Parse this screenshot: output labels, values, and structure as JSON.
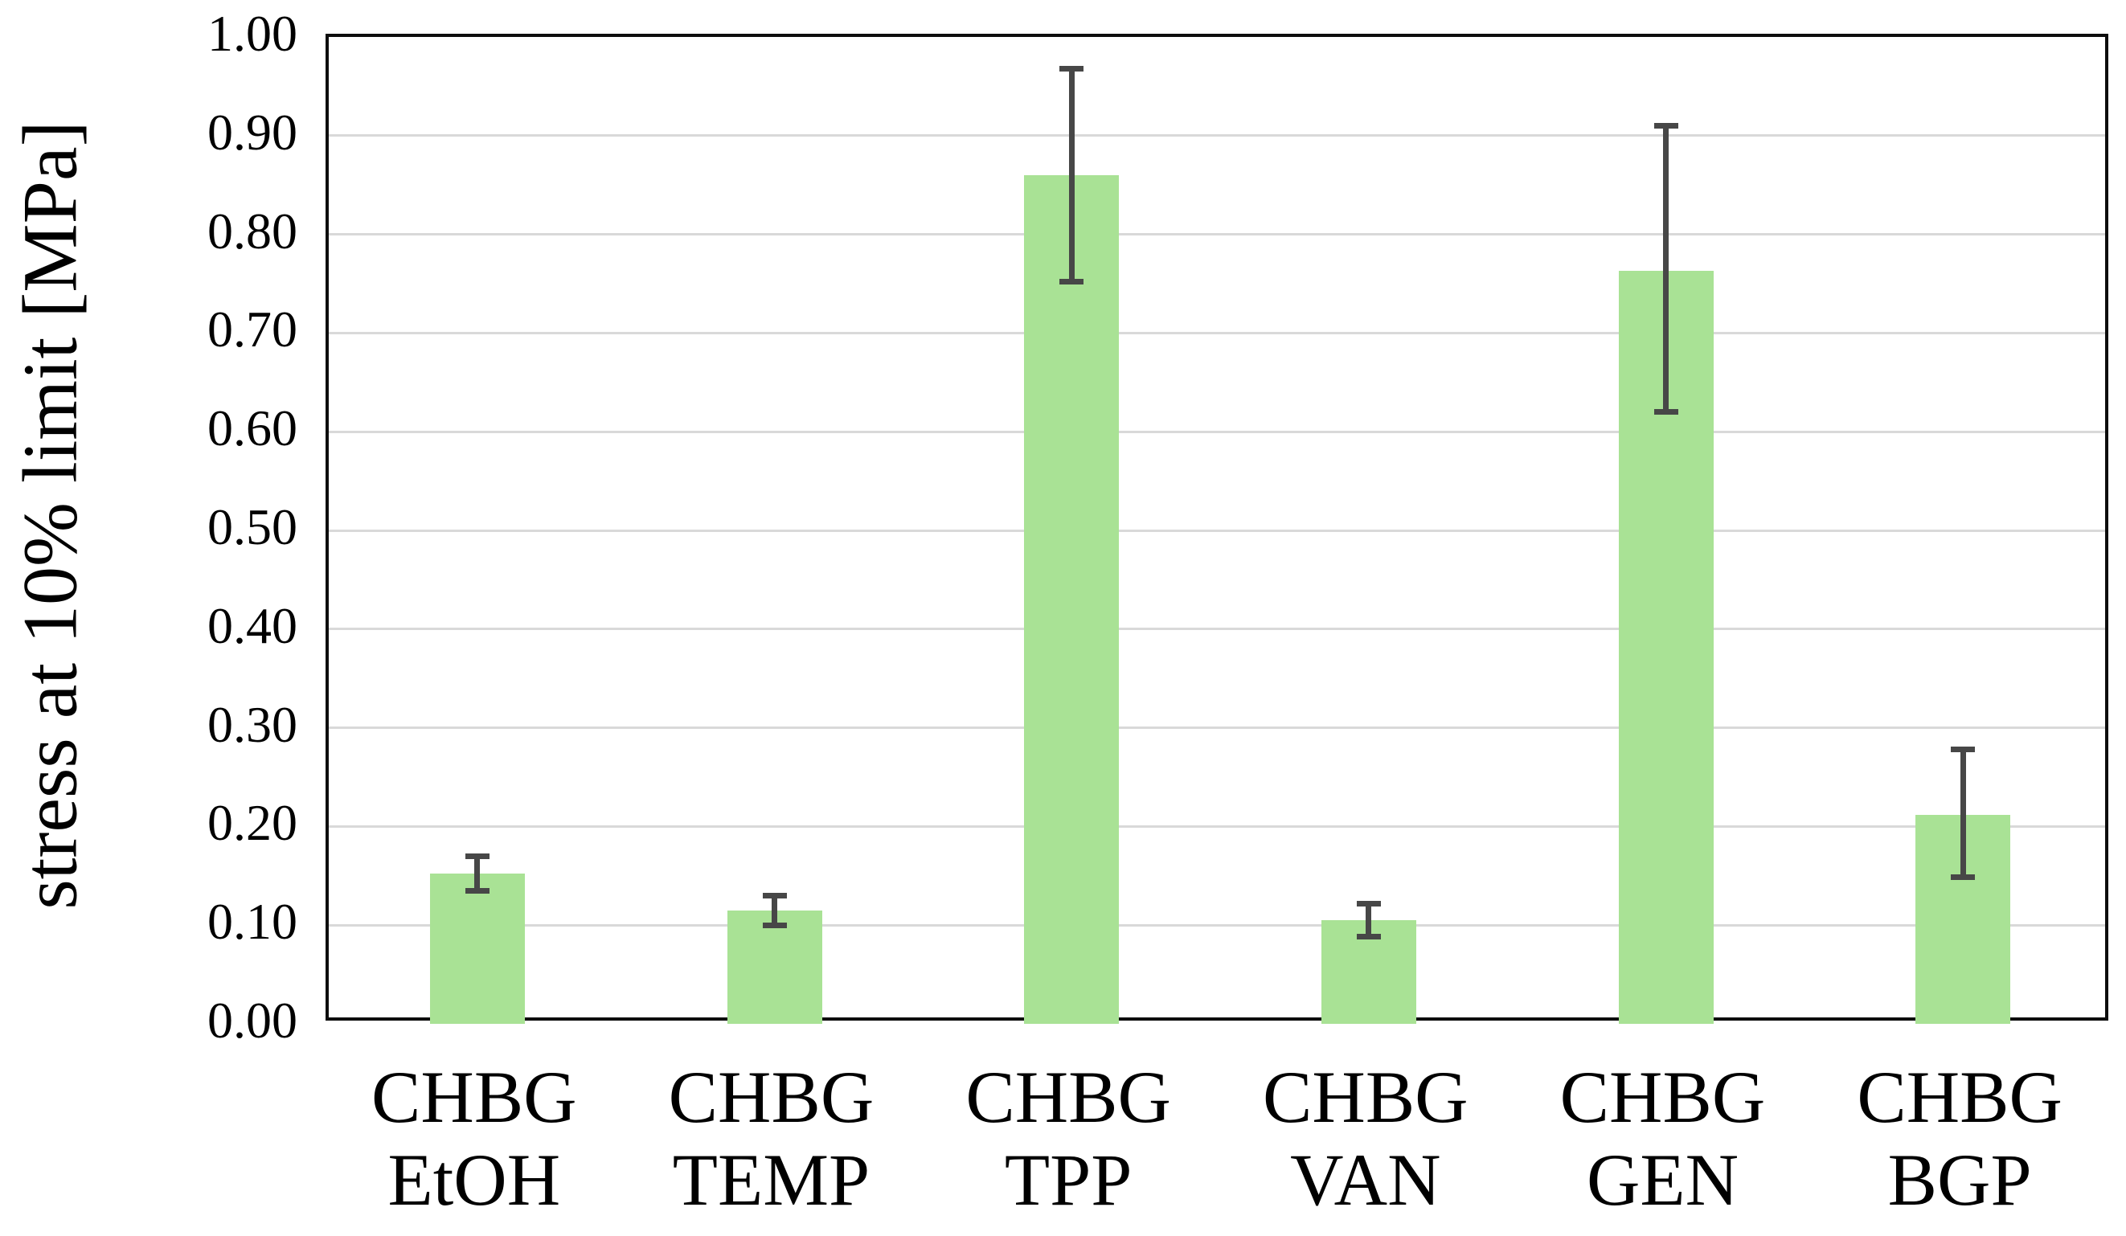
{
  "chart_data": {
    "type": "bar",
    "title": "",
    "xlabel": "",
    "ylabel": "stress at 10% limit [MPa]",
    "ylim": [
      0.0,
      1.0
    ],
    "ytick_step": 0.1,
    "yticks": [
      {
        "v": 0.0,
        "label": "0.00"
      },
      {
        "v": 0.1,
        "label": "0.10"
      },
      {
        "v": 0.2,
        "label": "0.20"
      },
      {
        "v": 0.3,
        "label": "0.30"
      },
      {
        "v": 0.4,
        "label": "0.40"
      },
      {
        "v": 0.5,
        "label": "0.50"
      },
      {
        "v": 0.6,
        "label": "0.60"
      },
      {
        "v": 0.7,
        "label": "0.70"
      },
      {
        "v": 0.8,
        "label": "0.80"
      },
      {
        "v": 0.9,
        "label": "0.90"
      },
      {
        "v": 1.0,
        "label": "1.00"
      }
    ],
    "categories": [
      [
        "CHBG",
        "EtOH"
      ],
      [
        "CHBG",
        "TEMP"
      ],
      [
        "CHBG",
        "TPP"
      ],
      [
        "CHBG",
        "VAN"
      ],
      [
        "CHBG",
        "GEN"
      ],
      [
        "CHBG",
        "BGP"
      ]
    ],
    "series": [
      {
        "name": "stress at 10% limit",
        "values": [
          0.152,
          0.115,
          0.86,
          0.105,
          0.763,
          0.212
        ],
        "error_top": [
          0.17,
          0.13,
          0.968,
          0.122,
          0.91,
          0.278
        ],
        "error_bottom": [
          0.135,
          0.1,
          0.752,
          0.088,
          0.62,
          0.149
        ]
      }
    ],
    "grid": true,
    "legend": false,
    "colors": {
      "bar_fill": "#A9E295",
      "error_bar": "#474747",
      "gridline": "#D9D9D9",
      "axis_frame": "#0D0D0D",
      "text": "#000000",
      "background": "#FFFFFF"
    }
  }
}
